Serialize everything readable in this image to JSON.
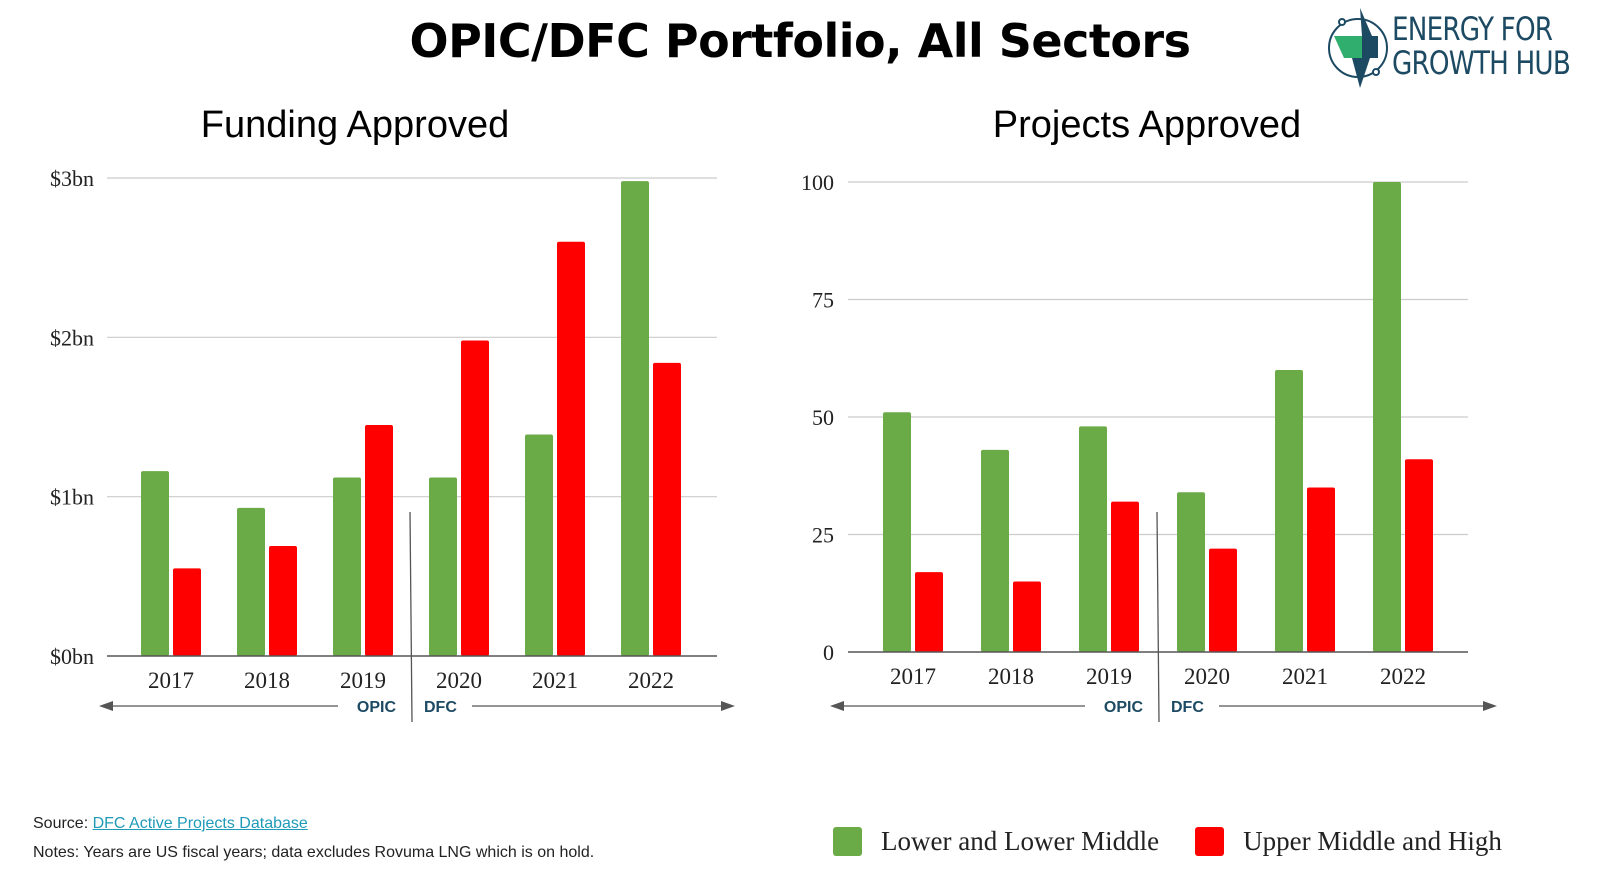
{
  "page": {
    "title": "OPIC/DFC Portfolio, All Sectors",
    "logo": {
      "line1": "ENERGY FOR",
      "line2": "GROWTH HUB"
    }
  },
  "colors": {
    "lower": "#6aaa47",
    "upper": "#ff0000",
    "grid": "#cccccc",
    "axis": "#555555",
    "era_label": "#1d4a63"
  },
  "chart_data": [
    {
      "type": "bar",
      "title": "Funding Approved",
      "categories": [
        "2017",
        "2018",
        "2019",
        "2020",
        "2021",
        "2022"
      ],
      "series": [
        {
          "name": "Lower and Lower Middle",
          "values": [
            1.16,
            0.93,
            1.12,
            1.12,
            1.39,
            2.98
          ]
        },
        {
          "name": "Upper Middle and High",
          "values": [
            0.55,
            0.69,
            1.45,
            1.98,
            2.6,
            1.84
          ]
        }
      ],
      "ylim": [
        0,
        3
      ],
      "ytick_values": [
        0,
        1,
        2,
        3
      ],
      "ytick_labels": [
        "$0bn",
        "$1bn",
        "$2bn",
        "$3bn"
      ],
      "xlabel": "",
      "ylabel": "",
      "grid": true,
      "era_annotations": {
        "left": "OPIC",
        "right": "DFC",
        "divider_after": "2019"
      }
    },
    {
      "type": "bar",
      "title": "Projects Approved",
      "categories": [
        "2017",
        "2018",
        "2019",
        "2020",
        "2021",
        "2022"
      ],
      "series": [
        {
          "name": "Lower and Lower Middle",
          "values": [
            51,
            43,
            48,
            34,
            60,
            100
          ]
        },
        {
          "name": "Upper Middle and High",
          "values": [
            17,
            15,
            32,
            22,
            35,
            41
          ]
        }
      ],
      "ylim": [
        0,
        100
      ],
      "ytick_values": [
        0,
        25,
        50,
        75,
        100
      ],
      "ytick_labels": [
        "0",
        "25",
        "50",
        "75",
        "100"
      ],
      "xlabel": "",
      "ylabel": "",
      "grid": true,
      "era_annotations": {
        "left": "OPIC",
        "right": "DFC",
        "divider_after": "2019"
      }
    }
  ],
  "legend": {
    "items": [
      {
        "label": "Lower and Lower Middle"
      },
      {
        "label": "Upper Middle and High"
      }
    ],
    "placement": "bottom-right"
  },
  "footer": {
    "source_prefix": "Source: ",
    "source_link": "DFC Active Projects Database",
    "notes": "Notes: Years are US fiscal years; data excludes Rovuma LNG which is on hold."
  }
}
